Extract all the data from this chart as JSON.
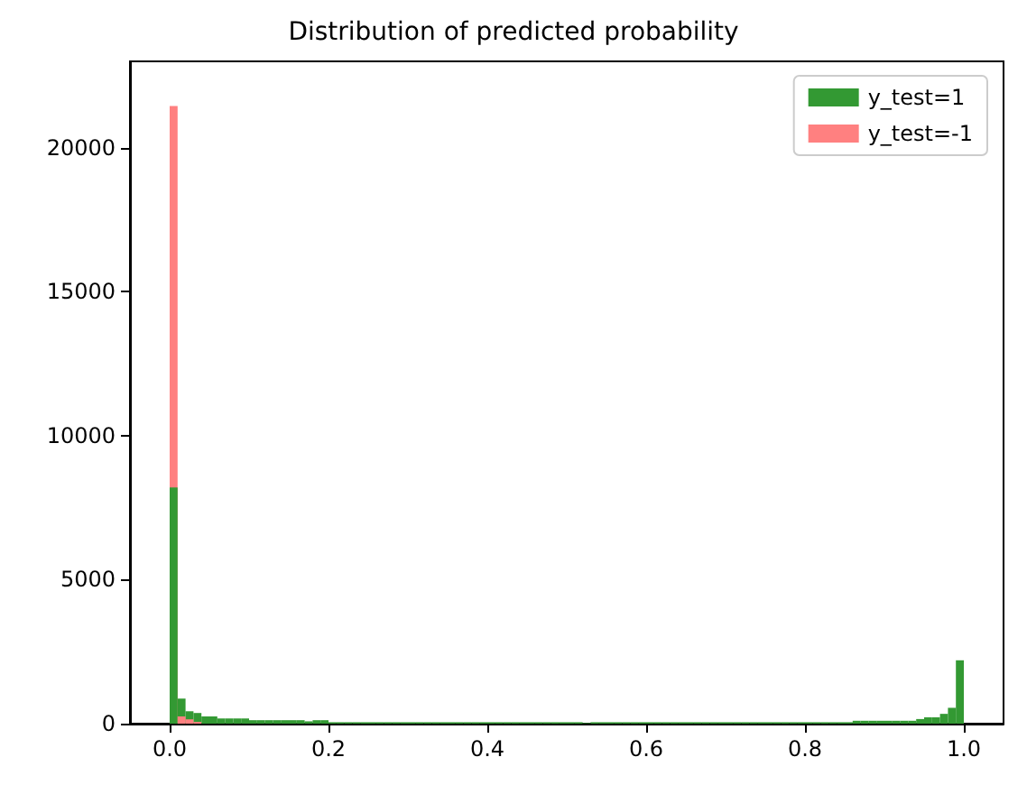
{
  "chart_data": {
    "type": "histogram",
    "title": "Distribution of predicted probability",
    "bins": [
      0,
      0.01,
      0.02,
      0.03,
      0.04,
      0.05,
      0.06,
      0.07,
      0.08,
      0.09,
      0.1,
      0.11,
      0.12,
      0.13,
      0.14,
      0.15,
      0.16,
      0.17,
      0.18,
      0.19,
      0.2,
      0.21,
      0.22,
      0.23,
      0.24,
      0.25,
      0.26,
      0.27,
      0.28,
      0.29,
      0.3,
      0.31,
      0.32,
      0.33,
      0.34,
      0.35,
      0.36,
      0.37,
      0.38,
      0.39,
      0.4,
      0.41,
      0.42,
      0.43,
      0.44,
      0.45,
      0.46,
      0.47,
      0.48,
      0.49,
      0.5,
      0.51,
      0.52,
      0.53,
      0.54,
      0.55,
      0.56,
      0.57,
      0.58,
      0.59,
      0.6,
      0.61,
      0.62,
      0.63,
      0.64,
      0.65,
      0.66,
      0.67,
      0.68,
      0.69,
      0.7,
      0.71,
      0.72,
      0.73,
      0.74,
      0.75,
      0.76,
      0.77,
      0.78,
      0.79,
      0.8,
      0.81,
      0.82,
      0.83,
      0.84,
      0.85,
      0.86,
      0.87,
      0.88,
      0.89,
      0.9,
      0.91,
      0.92,
      0.93,
      0.94,
      0.95,
      0.96,
      0.97,
      0.98,
      0.99,
      1
    ],
    "series": [
      {
        "name": "y_test=1",
        "color": "#339933",
        "values": [
          8200,
          870,
          430,
          370,
          250,
          250,
          180,
          180,
          180,
          180,
          120,
          120,
          120,
          120,
          120,
          120,
          120,
          80,
          120,
          120,
          50,
          50,
          50,
          50,
          50,
          50,
          50,
          50,
          50,
          50,
          50,
          50,
          50,
          50,
          50,
          50,
          50,
          50,
          50,
          50,
          50,
          50,
          50,
          50,
          50,
          50,
          50,
          50,
          50,
          50,
          50,
          50,
          20,
          50,
          50,
          50,
          50,
          50,
          50,
          50,
          50,
          50,
          50,
          50,
          50,
          50,
          50,
          50,
          50,
          50,
          50,
          50,
          50,
          50,
          50,
          50,
          50,
          50,
          50,
          50,
          50,
          50,
          50,
          50,
          50,
          50,
          100,
          100,
          100,
          100,
          100,
          100,
          100,
          100,
          160,
          220,
          220,
          340,
          550,
          2200
        ]
      },
      {
        "name": "y_test=-1",
        "color": "#ff8080",
        "values": [
          21450,
          250,
          150,
          60,
          0,
          0,
          0,
          0,
          0,
          0,
          0,
          0,
          0,
          0,
          0,
          0,
          0,
          0,
          0,
          0,
          0,
          0,
          0,
          0,
          0,
          0,
          0,
          0,
          0,
          0,
          0,
          0,
          0,
          0,
          0,
          0,
          0,
          0,
          0,
          0,
          0,
          0,
          0,
          0,
          0,
          0,
          0,
          0,
          0,
          0,
          0,
          0,
          0,
          0,
          0,
          0,
          0,
          0,
          0,
          0,
          0,
          0,
          0,
          0,
          0,
          0,
          0,
          0,
          0,
          0,
          0,
          0,
          0,
          0,
          0,
          0,
          0,
          0,
          0,
          0,
          0,
          0,
          0,
          0,
          0,
          0,
          0,
          0,
          0,
          0,
          0,
          0,
          0,
          0,
          0,
          0,
          0,
          0,
          0,
          0
        ]
      }
    ],
    "xlim": [
      -0.05,
      1.05
    ],
    "xticks": [
      {
        "value": 0,
        "label": "0.0"
      },
      {
        "value": 0.2,
        "label": "0.2"
      },
      {
        "value": 0.4,
        "label": "0.4"
      },
      {
        "value": 0.6,
        "label": "0.6"
      },
      {
        "value": 0.8,
        "label": "0.8"
      },
      {
        "value": 1.0,
        "label": "1.0"
      }
    ],
    "ylim": [
      0,
      23000
    ],
    "yticks": [
      0,
      5000,
      10000,
      15000,
      20000
    ],
    "grid": false,
    "legend": "top right"
  }
}
